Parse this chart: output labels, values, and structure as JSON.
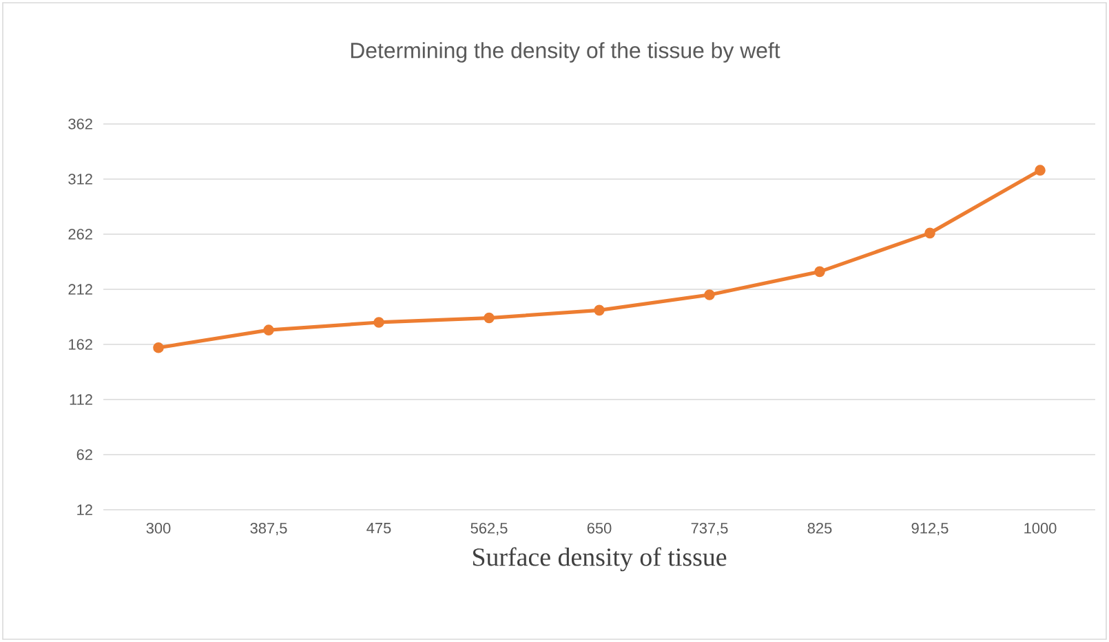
{
  "chart_data": {
    "type": "line",
    "title": "Determining the density of the tissue by weft",
    "xlabel": "Surface density of tissue",
    "categories": [
      "300",
      "387,5",
      "475",
      "562,5",
      "650",
      "737,5",
      "825",
      "912,5",
      "1000"
    ],
    "series": [
      {
        "color": "#ed7d31",
        "values": [
          159,
          175,
          182,
          186,
          193,
          207,
          228,
          263,
          320
        ]
      }
    ],
    "ylim": [
      12,
      362
    ],
    "yticks": [
      12,
      62,
      112,
      162,
      212,
      262,
      312,
      362
    ],
    "grid": "y",
    "marker": "circle",
    "line_style": "solid"
  }
}
